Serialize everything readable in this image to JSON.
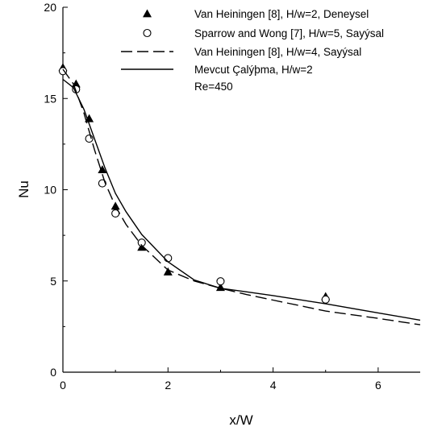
{
  "chart_data": {
    "type": "scatter",
    "xlabel": "x/W",
    "ylabel": "Nu",
    "xlim": [
      0,
      6.8
    ],
    "ylim": [
      0,
      20
    ],
    "xticks": [
      0,
      2,
      4,
      6
    ],
    "yticks": [
      0,
      5,
      10,
      15,
      20
    ],
    "grid": false,
    "legend_position": "top-right",
    "series": [
      {
        "name": "Van Heiningen [8], H/w=2, Deneysel",
        "style": "filled-triangle",
        "x": [
          0.0,
          0.25,
          0.5,
          0.75,
          1.0,
          1.5,
          2.0,
          3.0,
          5.0
        ],
        "y": [
          16.7,
          15.8,
          13.9,
          11.1,
          9.1,
          6.85,
          5.5,
          4.65,
          4.15
        ]
      },
      {
        "name": "Sparrow and Wong [7], H/w=5, Sayýsal",
        "style": "open-circle",
        "x": [
          0.0,
          0.25,
          0.5,
          0.75,
          1.0,
          1.5,
          2.0,
          3.0,
          5.0
        ],
        "y": [
          16.5,
          15.5,
          12.8,
          10.35,
          8.7,
          7.1,
          6.25,
          4.98,
          3.98
        ]
      },
      {
        "name": "Van Heiningen [8], H/w=4, Sayýsal",
        "style": "dashed-line",
        "x": [
          0.0,
          0.2,
          0.4,
          0.6,
          0.8,
          1.0,
          1.2,
          1.5,
          2.0,
          2.5,
          3.0,
          3.5,
          4.0,
          5.0,
          6.0,
          6.8
        ],
        "y": [
          16.6,
          15.8,
          14.2,
          12.2,
          10.4,
          9.1,
          8.1,
          6.95,
          5.6,
          5.0,
          4.6,
          4.25,
          3.95,
          3.35,
          2.95,
          2.6
        ]
      },
      {
        "name": "Mevcut Çalýþama, H/w=2",
        "style": "solid-line",
        "x": [
          0.0,
          0.2,
          0.4,
          0.6,
          0.8,
          1.0,
          1.2,
          1.5,
          2.0,
          2.5,
          3.0,
          3.5,
          4.0,
          5.0,
          6.0,
          6.8
        ],
        "y": [
          16.05,
          15.6,
          14.4,
          12.8,
          11.2,
          9.8,
          8.8,
          7.55,
          6.05,
          5.05,
          4.6,
          4.4,
          4.2,
          3.75,
          3.25,
          2.85
        ]
      }
    ],
    "legend": {
      "entries": [
        "Van Heiningen [8], H/w=2, Deneysel",
        "Sparrow and Wong [7], H/w=5, Sayýsal",
        "Van Heiningen [8], H/w=4, Sayýsal",
        "Mevcut Çalýþma, H/w=2"
      ],
      "note": "Re=450"
    },
    "colors": {
      "ink": "#000000",
      "background": "#ffffff"
    }
  }
}
